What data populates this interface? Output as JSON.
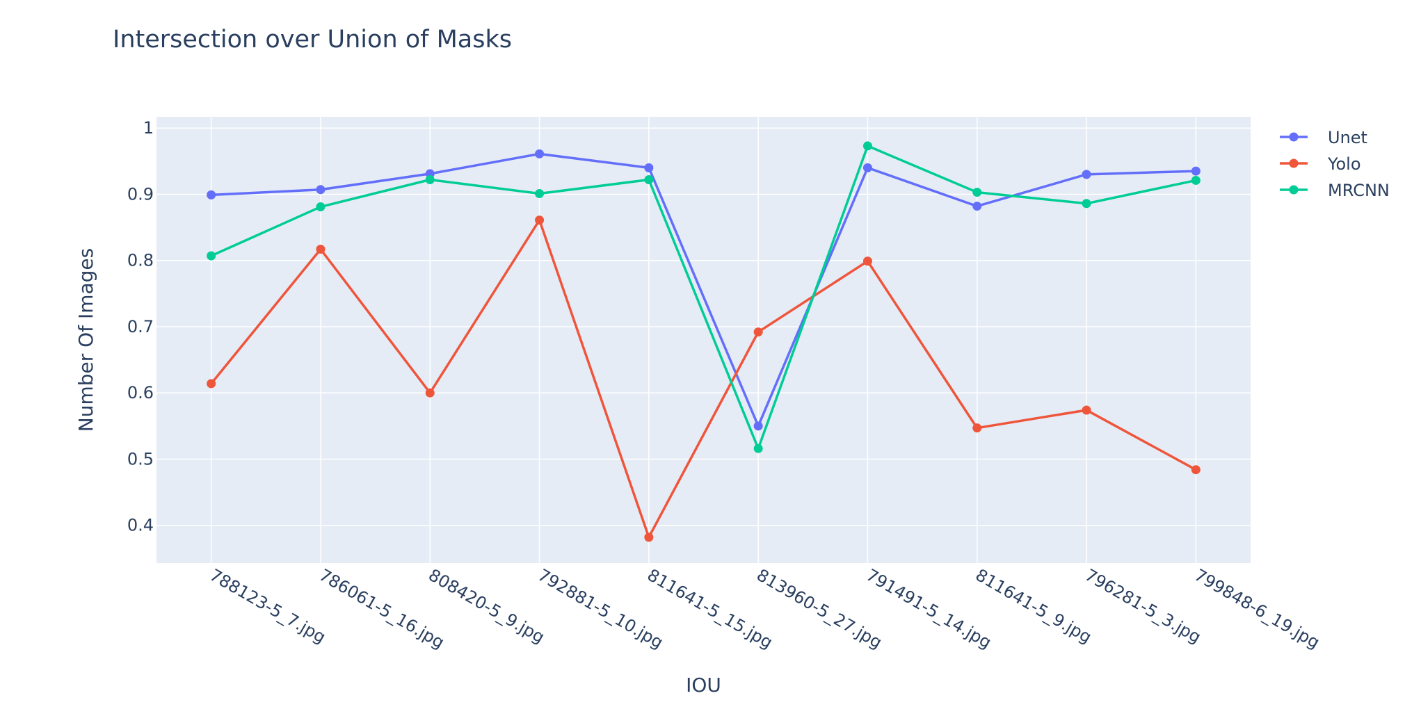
{
  "chart_data": {
    "type": "line",
    "title": "Intersection over Union of Masks",
    "xlabel": "IOU",
    "ylabel": "Number Of Images",
    "categories": [
      "788123-5_7.jpg",
      "786061-5_16.jpg",
      "808420-5_9.jpg",
      "792881-5_10.jpg",
      "811641-5_15.jpg",
      "813960-5_27.jpg",
      "791491-5_14.jpg",
      "811641-5_9.jpg",
      "796281-5_3.jpg",
      "799848-6_19.jpg"
    ],
    "series": [
      {
        "name": "Unet",
        "color": "#636efa",
        "values": [
          0.899,
          0.907,
          0.931,
          0.961,
          0.94,
          0.55,
          0.94,
          0.882,
          0.93,
          0.935
        ]
      },
      {
        "name": "Yolo",
        "color": "#ef553b",
        "values": [
          0.614,
          0.817,
          0.6,
          0.861,
          0.382,
          0.692,
          0.799,
          0.547,
          0.574,
          0.484
        ]
      },
      {
        "name": "MRCNN",
        "color": "#00cc96",
        "values": [
          0.807,
          0.881,
          0.922,
          0.901,
          0.922,
          0.516,
          0.973,
          0.903,
          0.886,
          0.921
        ]
      }
    ],
    "yticks": [
      "0.4",
      "0.5",
      "0.6",
      "0.7",
      "0.8",
      "0.9",
      "1"
    ],
    "ylim": [
      0.343,
      1.017
    ],
    "grid": true,
    "legend_position": "top-right",
    "plot_background": "#e5ecf6",
    "grid_color": "#ffffff"
  }
}
